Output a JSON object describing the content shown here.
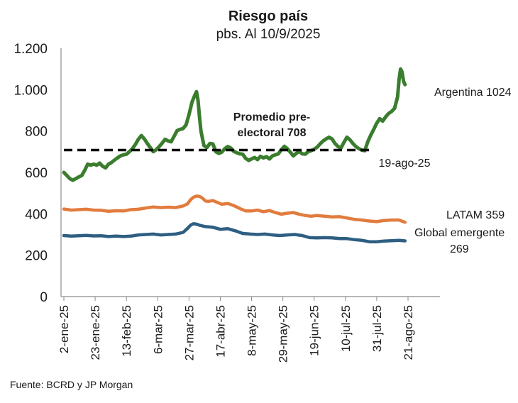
{
  "chart_data": {
    "type": "line",
    "title": "Riesgo país",
    "subtitle": "pbs. Al 10/9/2025",
    "source": "Fuente: BCRD y JP Morgan",
    "ylim": [
      0,
      1200
    ],
    "yticks": [
      0,
      200,
      400,
      600,
      800,
      1000,
      1200
    ],
    "ytick_labels": [
      "0",
      "200",
      "400",
      "600",
      "800",
      "1.000",
      "1.200"
    ],
    "xticks": [
      "2-ene-25",
      "23-ene-25",
      "13-feb-25",
      "6-mar-25",
      "27-mar-25",
      "17-abr-25",
      "8-may-25",
      "29-may-25",
      "19-jun-25",
      "10-jul-25",
      "31-jul-25",
      "21-ago-25"
    ],
    "x_range_days": [
      0,
      251
    ],
    "grid": false,
    "series": [
      {
        "name": "Argentina",
        "label": "Argentina 1024",
        "color": "#3a7d2e",
        "points": [
          [
            0,
            600
          ],
          [
            2,
            585
          ],
          [
            4,
            570
          ],
          [
            6,
            562
          ],
          [
            8,
            570
          ],
          [
            10,
            578
          ],
          [
            12,
            585
          ],
          [
            14,
            610
          ],
          [
            16,
            640
          ],
          [
            18,
            635
          ],
          [
            20,
            640
          ],
          [
            22,
            635
          ],
          [
            24,
            645
          ],
          [
            26,
            630
          ],
          [
            28,
            622
          ],
          [
            30,
            640
          ],
          [
            32,
            648
          ],
          [
            34,
            660
          ],
          [
            36,
            670
          ],
          [
            38,
            680
          ],
          [
            40,
            685
          ],
          [
            42,
            688
          ],
          [
            44,
            700
          ],
          [
            46,
            715
          ],
          [
            48,
            735
          ],
          [
            50,
            760
          ],
          [
            52,
            778
          ],
          [
            54,
            762
          ],
          [
            56,
            740
          ],
          [
            58,
            720
          ],
          [
            60,
            700
          ],
          [
            62,
            710
          ],
          [
            64,
            725
          ],
          [
            66,
            742
          ],
          [
            68,
            760
          ],
          [
            70,
            752
          ],
          [
            72,
            748
          ],
          [
            74,
            775
          ],
          [
            76,
            802
          ],
          [
            78,
            808
          ],
          [
            80,
            812
          ],
          [
            82,
            830
          ],
          [
            84,
            880
          ],
          [
            86,
            940
          ],
          [
            88,
            975
          ],
          [
            89,
            990
          ],
          [
            90,
            950
          ],
          [
            91,
            870
          ],
          [
            92,
            800
          ],
          [
            94,
            730
          ],
          [
            96,
            720
          ],
          [
            98,
            740
          ],
          [
            100,
            738
          ],
          [
            102,
            700
          ],
          [
            104,
            692
          ],
          [
            106,
            698
          ],
          [
            108,
            715
          ],
          [
            110,
            725
          ],
          [
            112,
            718
          ],
          [
            114,
            702
          ],
          [
            116,
            695
          ],
          [
            118,
            690
          ],
          [
            120,
            688
          ],
          [
            122,
            668
          ],
          [
            124,
            658
          ],
          [
            126,
            665
          ],
          [
            128,
            672
          ],
          [
            130,
            662
          ],
          [
            132,
            678
          ],
          [
            134,
            670
          ],
          [
            136,
            676
          ],
          [
            138,
            665
          ],
          [
            140,
            680
          ],
          [
            142,
            685
          ],
          [
            144,
            690
          ],
          [
            146,
            710
          ],
          [
            148,
            726
          ],
          [
            150,
            715
          ],
          [
            152,
            698
          ],
          [
            154,
            680
          ],
          [
            156,
            692
          ],
          [
            158,
            702
          ],
          [
            160,
            690
          ],
          [
            162,
            688
          ],
          [
            164,
            700
          ],
          [
            166,
            705
          ],
          [
            168,
            712
          ],
          [
            170,
            722
          ],
          [
            172,
            738
          ],
          [
            174,
            752
          ],
          [
            176,
            762
          ],
          [
            178,
            770
          ],
          [
            180,
            762
          ],
          [
            182,
            740
          ],
          [
            184,
            725
          ],
          [
            186,
            718
          ],
          [
            188,
            745
          ],
          [
            190,
            770
          ],
          [
            192,
            758
          ],
          [
            194,
            740
          ],
          [
            196,
            725
          ],
          [
            198,
            715
          ],
          [
            200,
            708
          ],
          [
            202,
            705
          ],
          [
            204,
            748
          ],
          [
            206,
            780
          ],
          [
            208,
            808
          ],
          [
            210,
            838
          ],
          [
            212,
            860
          ],
          [
            214,
            848
          ],
          [
            216,
            868
          ],
          [
            218,
            885
          ],
          [
            220,
            895
          ],
          [
            222,
            910
          ],
          [
            224,
            965
          ],
          [
            225,
            1050
          ],
          [
            226,
            1100
          ],
          [
            227,
            1085
          ],
          [
            228,
            1040
          ],
          [
            229,
            1024
          ]
        ]
      },
      {
        "name": "LATAM",
        "label": "LATAM 359",
        "color": "#e27c3e",
        "points": [
          [
            0,
            423
          ],
          [
            5,
            418
          ],
          [
            10,
            420
          ],
          [
            15,
            422
          ],
          [
            20,
            418
          ],
          [
            25,
            417
          ],
          [
            30,
            412
          ],
          [
            35,
            415
          ],
          [
            40,
            414
          ],
          [
            45,
            420
          ],
          [
            50,
            422
          ],
          [
            55,
            428
          ],
          [
            60,
            433
          ],
          [
            65,
            430
          ],
          [
            70,
            432
          ],
          [
            75,
            430
          ],
          [
            80,
            438
          ],
          [
            83,
            448
          ],
          [
            85,
            468
          ],
          [
            87,
            480
          ],
          [
            89,
            486
          ],
          [
            91,
            484
          ],
          [
            93,
            476
          ],
          [
            95,
            462
          ],
          [
            97,
            460
          ],
          [
            100,
            464
          ],
          [
            103,
            455
          ],
          [
            106,
            446
          ],
          [
            110,
            450
          ],
          [
            114,
            440
          ],
          [
            118,
            426
          ],
          [
            122,
            414
          ],
          [
            126,
            414
          ],
          [
            130,
            418
          ],
          [
            134,
            410
          ],
          [
            138,
            416
          ],
          [
            142,
            406
          ],
          [
            146,
            398
          ],
          [
            150,
            403
          ],
          [
            154,
            406
          ],
          [
            158,
            398
          ],
          [
            162,
            392
          ],
          [
            166,
            388
          ],
          [
            170,
            392
          ],
          [
            175,
            388
          ],
          [
            180,
            385
          ],
          [
            185,
            386
          ],
          [
            190,
            380
          ],
          [
            195,
            373
          ],
          [
            200,
            370
          ],
          [
            205,
            365
          ],
          [
            210,
            362
          ],
          [
            215,
            368
          ],
          [
            220,
            370
          ],
          [
            225,
            370
          ],
          [
            229,
            359
          ]
        ]
      },
      {
        "name": "Global emergente",
        "label": "Global emergente 269",
        "color": "#2e5f82",
        "points": [
          [
            0,
            295
          ],
          [
            5,
            292
          ],
          [
            10,
            294
          ],
          [
            15,
            296
          ],
          [
            20,
            293
          ],
          [
            25,
            294
          ],
          [
            30,
            290
          ],
          [
            35,
            292
          ],
          [
            40,
            290
          ],
          [
            45,
            292
          ],
          [
            50,
            298
          ],
          [
            55,
            300
          ],
          [
            60,
            302
          ],
          [
            65,
            298
          ],
          [
            70,
            300
          ],
          [
            75,
            302
          ],
          [
            80,
            310
          ],
          [
            83,
            330
          ],
          [
            85,
            345
          ],
          [
            87,
            352
          ],
          [
            89,
            350
          ],
          [
            91,
            345
          ],
          [
            95,
            338
          ],
          [
            100,
            335
          ],
          [
            105,
            325
          ],
          [
            110,
            328
          ],
          [
            115,
            318
          ],
          [
            120,
            305
          ],
          [
            125,
            302
          ],
          [
            130,
            300
          ],
          [
            135,
            302
          ],
          [
            140,
            298
          ],
          [
            145,
            295
          ],
          [
            150,
            298
          ],
          [
            155,
            300
          ],
          [
            160,
            295
          ],
          [
            165,
            285
          ],
          [
            170,
            284
          ],
          [
            175,
            285
          ],
          [
            180,
            284
          ],
          [
            185,
            280
          ],
          [
            190,
            280
          ],
          [
            195,
            275
          ],
          [
            200,
            272
          ],
          [
            205,
            265
          ],
          [
            210,
            265
          ],
          [
            215,
            268
          ],
          [
            220,
            270
          ],
          [
            225,
            272
          ],
          [
            229,
            269
          ]
        ]
      }
    ],
    "reference_line": {
      "label_line1": "Promedio pre-",
      "label_line2": "electoral 708",
      "value": 708,
      "x_start": 0,
      "x_end": 206,
      "end_label": "19-ago-25"
    }
  }
}
